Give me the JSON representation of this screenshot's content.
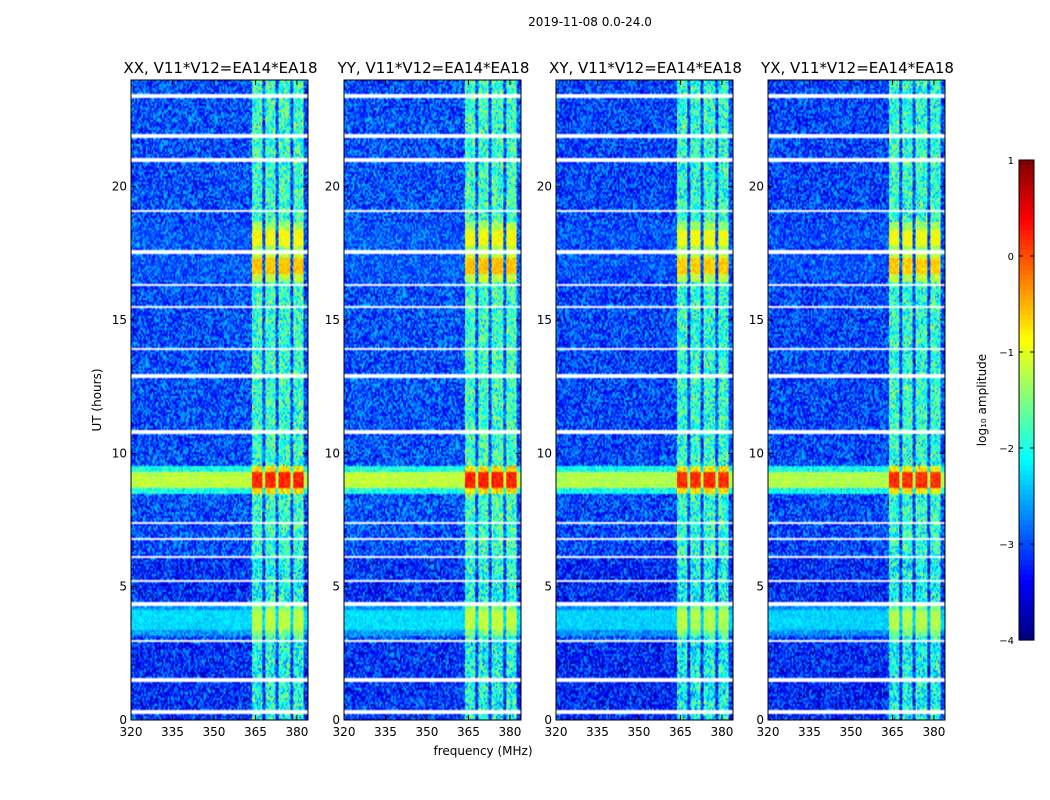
{
  "chart_data": {
    "type": "heatmap",
    "suptitle": "2019-11-08 0.0-24.0",
    "panels": [
      {
        "title": "XX, V11*V12=EA14*EA18",
        "intensity": 1.0
      },
      {
        "title": "YY, V11*V12=EA14*EA18",
        "intensity": 1.05
      },
      {
        "title": "XY, V11*V12=EA14*EA18",
        "intensity": 0.9
      },
      {
        "title": "YX, V11*V12=EA14*EA18",
        "intensity": 0.9
      }
    ],
    "xlabel": "frequency (MHz)",
    "ylabel": "UT (hours)",
    "xlim": [
      320,
      384
    ],
    "ylim": [
      0,
      24
    ],
    "xticks": [
      320,
      335,
      350,
      365,
      380
    ],
    "yticks": [
      0,
      5,
      10,
      15,
      20
    ],
    "colorbar": {
      "label": "log₁₀ amplitude",
      "range": [
        -4,
        1
      ],
      "ticks": [
        "1",
        "0",
        "−1",
        "−2",
        "−3",
        "−4"
      ],
      "tick_values": [
        1,
        0,
        -1,
        -2,
        -3,
        -4
      ],
      "colormap": "jet"
    },
    "rfi_bands_mhz": [
      [
        363.5,
        367.5
      ],
      [
        368.5,
        372.5
      ],
      [
        373.5,
        377.5
      ],
      [
        378.5,
        382.5
      ]
    ],
    "bright_events": [
      {
        "ut_start": 8.7,
        "ut_end": 9.3,
        "band_value": 0.2,
        "bg_value": -1.2
      },
      {
        "ut_start": 16.7,
        "ut_end": 17.3,
        "band_value": -0.6,
        "bg_value": -3.2
      },
      {
        "ut_start": 17.8,
        "ut_end": 18.4,
        "band_value": -0.9,
        "bg_value": -3.2
      },
      {
        "ut_start": 3.4,
        "ut_end": 4.1,
        "band_value": -1.2,
        "bg_value": -2.3
      }
    ],
    "blank_rows_ut": [
      0.3,
      1.5,
      2.95,
      4.35,
      5.2,
      6.1,
      6.8,
      7.4,
      10.8,
      12.9,
      13.9,
      15.5,
      16.3,
      17.55,
      19.1,
      21.0,
      21.9,
      23.4
    ],
    "background_value": -3.0
  }
}
